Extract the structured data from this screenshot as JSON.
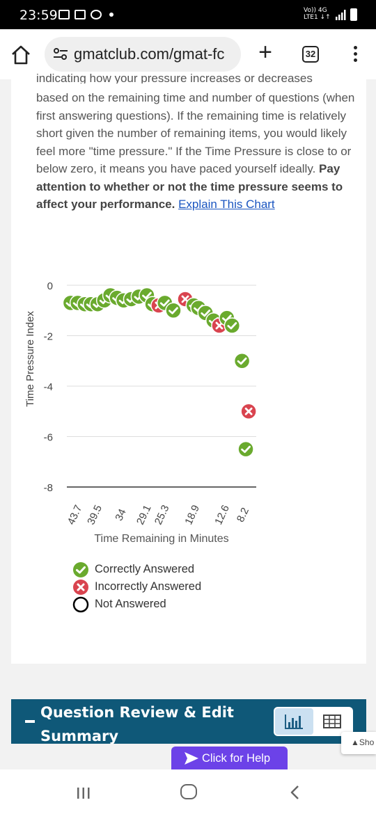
{
  "status_bar": {
    "time": "23:59",
    "network_line1": "Vo)) 4G",
    "network_line2": "LTE1 ↓↑"
  },
  "browser": {
    "url": "gmatclub.com/gmat-fc",
    "tab_count": "32",
    "icons": {
      "home": "home-icon",
      "tune": "site-settings-icon",
      "new_tab": "plus-icon",
      "menu": "more-vert-icon"
    }
  },
  "description": {
    "cut_line": "indicating how your pressure increases or decreases",
    "text": "based on the remaining time and number of questions (when first answering questions). If the remaining time is relatively short given the number of remaining items, you would likely feel more \"time pressure.\" If the Time Pressure is close to or below zero, it means you have paced yourself ideally. ",
    "bold_text": "Pay attention to whether or not the time pressure seems to affect your performance.",
    "link_text": "Explain This Chart"
  },
  "chart_data": {
    "type": "scatter",
    "xlabel": "Time Remaining in Minutes",
    "ylabel": "Time Pressure Index",
    "ylim": [
      -8,
      0
    ],
    "xlim": [
      46,
      6
    ],
    "x_ticks": [
      "43.7",
      "39.5",
      "34",
      "29.1",
      "25.3",
      "18.9",
      "12.6",
      "8.2"
    ],
    "x_tick_values": [
      43.7,
      39.5,
      34,
      29.1,
      25.3,
      18.9,
      12.6,
      8.2
    ],
    "y_ticks": [
      "0",
      "-2",
      "-4",
      "-6",
      "-8"
    ],
    "y_tick_values": [
      0,
      -2,
      -4,
      -6,
      -8
    ],
    "grid": true,
    "legend": [
      {
        "label": "Correctly Answered",
        "status": "correct",
        "color": "#6aaa2e"
      },
      {
        "label": "Incorrectly Answered",
        "status": "incorrect",
        "color": "#d9444f"
      },
      {
        "label": "Not Answered",
        "status": "unanswered",
        "color": "#000000"
      }
    ],
    "points": [
      {
        "x": 45.2,
        "y": -0.7,
        "status": "correct"
      },
      {
        "x": 43.7,
        "y": -0.7,
        "status": "correct"
      },
      {
        "x": 42.2,
        "y": -0.75,
        "status": "correct"
      },
      {
        "x": 40.9,
        "y": -0.75,
        "status": "correct"
      },
      {
        "x": 39.5,
        "y": -0.75,
        "status": "correct"
      },
      {
        "x": 38.1,
        "y": -0.6,
        "status": "correct"
      },
      {
        "x": 36.8,
        "y": -0.4,
        "status": "correct"
      },
      {
        "x": 35.4,
        "y": -0.5,
        "status": "correct"
      },
      {
        "x": 34.0,
        "y": -0.6,
        "status": "correct"
      },
      {
        "x": 32.4,
        "y": -0.55,
        "status": "correct"
      },
      {
        "x": 30.8,
        "y": -0.45,
        "status": "correct"
      },
      {
        "x": 29.1,
        "y": -0.4,
        "status": "correct"
      },
      {
        "x": 27.9,
        "y": -0.75,
        "status": "correct"
      },
      {
        "x": 26.6,
        "y": -0.8,
        "status": "incorrect"
      },
      {
        "x": 25.3,
        "y": -0.7,
        "status": "correct"
      },
      {
        "x": 23.5,
        "y": -1.0,
        "status": "correct"
      },
      {
        "x": 21.0,
        "y": -0.55,
        "status": "incorrect"
      },
      {
        "x": 19.2,
        "y": -0.8,
        "status": "correct"
      },
      {
        "x": 18.2,
        "y": -0.9,
        "status": "correct"
      },
      {
        "x": 16.7,
        "y": -1.1,
        "status": "correct"
      },
      {
        "x": 15.0,
        "y": -1.4,
        "status": "correct"
      },
      {
        "x": 13.8,
        "y": -1.6,
        "status": "incorrect"
      },
      {
        "x": 12.2,
        "y": -1.3,
        "status": "correct"
      },
      {
        "x": 11.1,
        "y": -1.6,
        "status": "correct"
      },
      {
        "x": 9.0,
        "y": -3.0,
        "status": "correct"
      },
      {
        "x": 7.6,
        "y": -5.0,
        "status": "incorrect"
      },
      {
        "x": 8.2,
        "y": -6.5,
        "status": "correct"
      }
    ]
  },
  "review": {
    "title": "Question Review & Edit Summary",
    "icons": {
      "chart": "bar-chart-icon",
      "table": "table-icon"
    }
  },
  "overlay": {
    "show_label": "Sho",
    "help_label": "Click for Help"
  },
  "nav": {
    "icons": {
      "recent": "recent-apps-icon",
      "home": "home-circle-icon",
      "back": "back-icon"
    }
  }
}
